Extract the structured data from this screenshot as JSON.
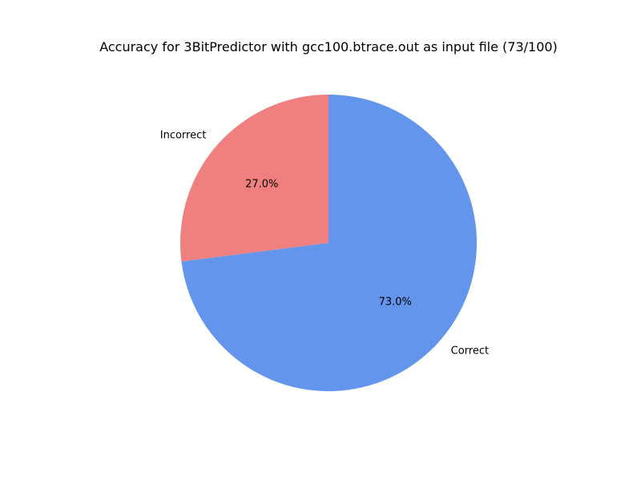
{
  "chart_data": {
    "type": "pie",
    "title": "Accuracy for 3BitPredictor with gcc100.btrace.out as input file (73/100)",
    "start_angle_deg": 90,
    "direction": "clockwise",
    "slices": [
      {
        "label": "Correct",
        "value": 73,
        "percent_label": "73.0%",
        "color": "#6495ed"
      },
      {
        "label": "Incorrect",
        "value": 27,
        "percent_label": "27.0%",
        "color": "#f08080"
      }
    ]
  }
}
